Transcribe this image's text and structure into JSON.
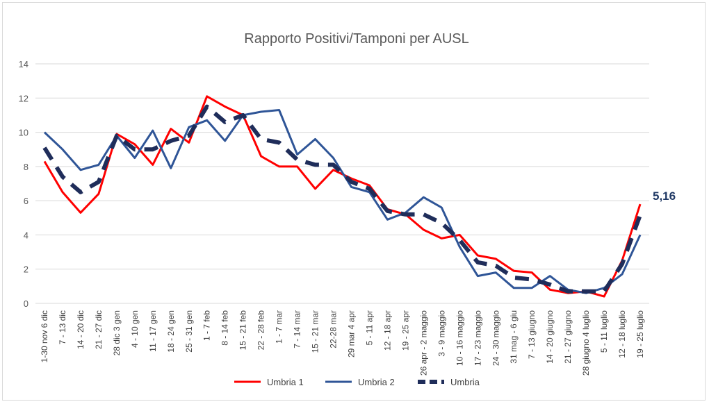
{
  "chart_data": {
    "type": "line",
    "title": "Rapporto Positivi/Tamponi per AUSL",
    "xlabel": "",
    "ylabel": "",
    "ylim": [
      0,
      14
    ],
    "yticks": [
      "0",
      "2",
      "4",
      "6",
      "8",
      "10",
      "12",
      "14"
    ],
    "grid": true,
    "legend": "bottom",
    "categories": [
      "1-30 nov 6 dic",
      "7 - 13 dic",
      "14 - 20 dic",
      "21 - 27 dic",
      "28 dic 3 gen",
      "4 - 10 gen",
      "11 - 17 gen",
      "18 - 24 gen",
      "25 - 31 gen",
      "1 - 7 feb",
      "8 - 14 feb",
      "15 - 21 feb",
      "22 - 28 feb",
      "1 - 7 mar",
      "7 - 14 mar",
      "15 - 21 mar",
      "22-28 mar",
      "29 mar 4 apr",
      "5 - 11 apr",
      "12 - 18 apr",
      "19 - 25 apr",
      "26 apr - 2 maggio",
      "3 - 9 maggio",
      "10 - 16 maggio",
      "17 - 23 maggio",
      "24 - 30 maggio",
      "31 mag - 6 giu",
      "7 - 13 giugno",
      "14 - 20 giugno",
      "21 - 27 giugno",
      "28 giugno 4 luglio",
      "5 - 11 luglio",
      "12 - 18 luglio",
      "19 - 25 luglio"
    ],
    "series": [
      {
        "name": "Umbria 1",
        "color": "#ff0000",
        "style": "solid",
        "values": [
          8.3,
          6.5,
          5.3,
          6.4,
          9.9,
          9.3,
          8.1,
          10.2,
          9.4,
          12.1,
          11.5,
          11.0,
          8.6,
          8.0,
          8.0,
          6.7,
          7.8,
          7.3,
          6.9,
          5.5,
          5.2,
          4.3,
          3.8,
          4.0,
          2.8,
          2.6,
          1.9,
          1.8,
          0.8,
          0.6,
          0.7,
          0.4,
          2.5,
          5.8
        ]
      },
      {
        "name": "Umbria 2",
        "color": "#2f5597",
        "style": "solid",
        "values": [
          10.0,
          9.0,
          7.8,
          8.1,
          9.8,
          8.5,
          10.1,
          7.9,
          10.3,
          10.7,
          9.5,
          11.0,
          11.2,
          11.3,
          8.7,
          9.6,
          8.5,
          6.8,
          6.5,
          4.9,
          5.3,
          6.2,
          5.6,
          3.3,
          1.6,
          1.8,
          0.9,
          0.9,
          1.6,
          0.8,
          0.6,
          0.9,
          1.7,
          4.0
        ]
      },
      {
        "name": "Umbria",
        "color": "#1f2d5a",
        "style": "dashed",
        "values": [
          9.1,
          7.4,
          6.5,
          7.1,
          9.8,
          9.0,
          9.0,
          9.5,
          9.8,
          11.5,
          10.6,
          11.0,
          9.6,
          9.4,
          8.4,
          8.1,
          8.1,
          7.1,
          6.7,
          5.4,
          5.2,
          5.2,
          4.7,
          3.7,
          2.4,
          2.2,
          1.5,
          1.4,
          1.1,
          0.7,
          0.7,
          0.7,
          2.3,
          5.16
        ]
      }
    ],
    "annotations": [
      {
        "text": "5,16",
        "series": "Umbria",
        "category": "19 - 25 luglio"
      }
    ]
  }
}
